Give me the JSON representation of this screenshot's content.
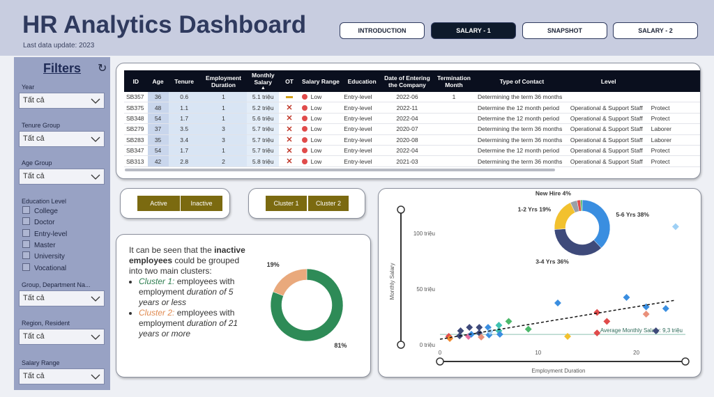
{
  "header": {
    "title": "HR Analytics Dashboard",
    "subtitle": "Last data update: 2023"
  },
  "nav": {
    "items": [
      "INTRODUCTION",
      "SALARY - 1",
      "SNAPSHOT",
      "SALARY - 2"
    ],
    "active": 1
  },
  "filters": {
    "title": "Filters",
    "items": [
      {
        "label": "Year",
        "value": "Tất cả"
      },
      {
        "label": "Tenure Group",
        "value": "Tất cả"
      },
      {
        "label": "Age Group",
        "value": "Tất cả"
      },
      {
        "label": "Education Level",
        "options": [
          "College",
          "Doctor",
          "Entry-level",
          "Master",
          "University",
          "Vocational"
        ]
      },
      {
        "label": "Group, Department Na...",
        "value": "Tất cả"
      },
      {
        "label": "Region, Resident",
        "value": "Tất cả"
      },
      {
        "label": "Salary Range",
        "value": "Tất cả"
      }
    ]
  },
  "table": {
    "columns": [
      "ID",
      "Age",
      "Tenure",
      "Employment Duration",
      "Monthly Salary",
      "OT",
      "Salary Range",
      "Education",
      "Date of Entering the Company",
      "Termination Month",
      "Type of Contact",
      "Level",
      null
    ],
    "rows": [
      [
        "SB357",
        36,
        0.6,
        1,
        "5.1 triệu",
        null,
        "Low",
        "Entry-level",
        "2022-06",
        1,
        "Determining the term 36 months",
        null,
        null
      ],
      [
        "SB375",
        48,
        1.1,
        1,
        "5.2 triệu",
        null,
        "Low",
        "Entry-level",
        "2022-11",
        null,
        "Determine the 12 month period",
        "Operational & Support Staff",
        "Protect"
      ],
      [
        "SB348",
        54,
        1.7,
        1,
        "5.6 triệu",
        null,
        "Low",
        "Entry-level",
        "2022-04",
        null,
        "Determine the 12 month period",
        "Operational & Support Staff",
        "Protect"
      ],
      [
        "SB279",
        37,
        3.5,
        3,
        "5.7 triệu",
        null,
        "Low",
        "Entry-level",
        "2020-07",
        null,
        "Determining the term 36 months",
        "Operational & Support Staff",
        "Laborer"
      ],
      [
        "SB283",
        35,
        3.4,
        3,
        "5.7 triệu",
        null,
        "Low",
        "Entry-level",
        "2020-08",
        null,
        "Determining the term 36 months",
        "Operational & Support Staff",
        "Laborer"
      ],
      [
        "SB347",
        54,
        1.7,
        1,
        "5.7 triệu",
        null,
        "Low",
        "Entry-level",
        "2022-04",
        null,
        "Determine the 12 month period",
        "Operational & Support Staff",
        "Protect"
      ],
      [
        "SB313",
        42,
        2.8,
        2,
        "5.8 triệu",
        null,
        "Low",
        "Entry-level",
        "2021-03",
        null,
        "Determining the term 36 months",
        "Operational & Support Staff",
        "Protect"
      ]
    ]
  },
  "button_groups": [
    [
      "Active",
      "Inactive"
    ],
    [
      "Cluster 1",
      "Cluster 2"
    ]
  ],
  "note": {
    "intro": [
      "It can be seen that the ",
      "inactive employees",
      " could be grouped into two main clusters:"
    ],
    "bullets": [
      [
        "Cluster 1:",
        " employees with employment ",
        "duration of 5 years or less"
      ],
      [
        "Cluster 2:",
        " employees with employment ",
        "duration of 21 years or more"
      ]
    ]
  },
  "chart_data": [
    {
      "type": "pie",
      "donut": true,
      "values": [
        81,
        19
      ],
      "value_labels": [
        "81%",
        "19%"
      ],
      "colors": [
        "#2E8B57",
        "#E9A97C"
      ]
    },
    {
      "type": "pie",
      "donut": true,
      "categories": [
        "5-6 Yrs",
        "3-4 Yrs",
        "1-2 Yrs",
        "New Hire",
        null,
        null
      ],
      "values": [
        38,
        36,
        19,
        4,
        2,
        1
      ],
      "value_labels": [
        "38%",
        "36%",
        "19%",
        "4%",
        null,
        null
      ],
      "colors": [
        "#3A8EE0",
        "#3E4A7A",
        "#F2C12E",
        "#9AA0A8",
        "#E04B4B",
        "#4CB86A"
      ]
    },
    {
      "type": "scatter",
      "xlabel": "Employment Duration",
      "ylabel": "Monthly Salary",
      "x": [
        0.9,
        1,
        2,
        2.1,
        2.9,
        3,
        3.2,
        4,
        4,
        4.2,
        4.9,
        5,
        5.1,
        6,
        6,
        6.1,
        7,
        9,
        12,
        13,
        16,
        16,
        17,
        19,
        21,
        21,
        22,
        23,
        24
      ],
      "y": [
        7.5,
        5.6,
        8,
        12.5,
        7.5,
        15.6,
        9.4,
        10.6,
        15.6,
        6.9,
        15.6,
        8.8,
        11.9,
        17.5,
        12.5,
        9.4,
        21,
        14,
        37.5,
        7.5,
        29,
        10.6,
        21,
        42.5,
        27.5,
        34,
        12.5,
        32.5,
        106
      ],
      "colors": [
        "#E04B4B",
        "#F08A30",
        "#3E4A7A",
        "#3E4A7A",
        "#E86FA0",
        "#3E4A7A",
        "#3A8EE0",
        "#3E4A7A",
        "#3E4A7A",
        "#E9907A",
        "#3A8EE0",
        "#3A8EE0",
        "#9ED0F5",
        "#3FC1B0",
        "#3FC1B0",
        "#3A8EE0",
        "#4CB86A",
        "#4CB86A",
        "#3A8EE0",
        "#F2C12E",
        "#E04B4B",
        "#E04B4B",
        "#E04B4B",
        "#3A8EE0",
        "#E9907A",
        "#3A8EE0",
        "#3E4A7A",
        "#3A8EE0",
        "#9ED0F5"
      ],
      "xlim": [
        0,
        25
      ],
      "ylim": [
        0,
        120
      ],
      "xticks": [
        0,
        10,
        20
      ],
      "yticks": [
        {
          "value": 0,
          "label": "0 triệu"
        },
        {
          "value": 50,
          "label": "50 triệu"
        },
        {
          "value": 100,
          "label": "100 triệu"
        }
      ],
      "reference_line": {
        "value": 9.3,
        "label": "Average Monthly Salary: 9,3 triệu",
        "color": "#8CC0B0"
      },
      "trendline": {
        "x": [
          0,
          24
        ],
        "y": [
          5,
          40
        ]
      }
    }
  ]
}
